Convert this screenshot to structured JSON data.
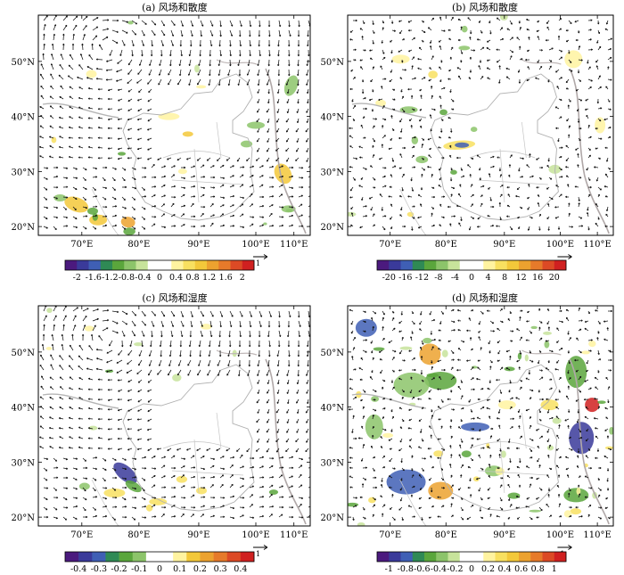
{
  "figure": {
    "panels": [
      {
        "id": "a",
        "title": "(a) 风场和散度",
        "lat_labels": [
          "50°N",
          "40°N",
          "30°N",
          "20°N"
        ],
        "lon_labels": [
          "70°E",
          "80°E",
          "90°E",
          "100°E",
          "110°E"
        ],
        "colorbar": {
          "tick_labels": [
            "-2",
            "-1.6",
            "-1.2",
            "-0.8",
            "-0.4",
            "0",
            "0.4",
            "0.8",
            "1.2",
            "1.6",
            "2"
          ],
          "colors": [
            "#4b1a7e",
            "#3a3a9a",
            "#3f5fb5",
            "#2f8a55",
            "#5aa63c",
            "#8cc46a",
            "#c7e39b",
            "#ffffff",
            "#ffffff",
            "#fff3a0",
            "#f8e060",
            "#f3c83a",
            "#eca22f",
            "#e67a2a",
            "#dc4a25",
            "#d02020"
          ]
        },
        "reference_vector": "1"
      },
      {
        "id": "b",
        "title": "(b) 风场和散度",
        "lat_labels": [
          "50°N",
          "40°N",
          "30°N",
          "20°N"
        ],
        "lon_labels": [
          "70°E",
          "80°E",
          "90°E",
          "100°E",
          "110°E"
        ],
        "colorbar": {
          "tick_labels": [
            "-20",
            "-16",
            "-12",
            "-8",
            "-4",
            "0",
            "4",
            "8",
            "12",
            "16",
            "20"
          ],
          "colors": [
            "#4b1a7e",
            "#3a3a9a",
            "#3f5fb5",
            "#2f8a55",
            "#5aa63c",
            "#8cc46a",
            "#c7e39b",
            "#ffffff",
            "#ffffff",
            "#fff3a0",
            "#f8e060",
            "#f3c83a",
            "#eca22f",
            "#e67a2a",
            "#dc4a25",
            "#d02020"
          ]
        },
        "reference_vector": "1"
      },
      {
        "id": "c",
        "title": "(c) 风场和湿度",
        "lat_labels": [
          "50°N",
          "40°N",
          "30°N",
          "20°N"
        ],
        "lon_labels": [
          "70°E",
          "80°E",
          "90°E",
          "100°E",
          "110°E"
        ],
        "colorbar": {
          "tick_labels": [
            "-0.4",
            "-0.3",
            "-0.2",
            "-0.1",
            "0",
            "0.1",
            "0.2",
            "0.3",
            "0.4"
          ],
          "colors": [
            "#4b1a7e",
            "#3a3a9a",
            "#3f5fb5",
            "#2f8a55",
            "#5aa63c",
            "#8cc46a",
            "#ffffff",
            "#ffffff",
            "#fff3a0",
            "#f3c83a",
            "#eca22f",
            "#e67a2a",
            "#dc4a25",
            "#d02020"
          ]
        },
        "reference_vector": "1"
      },
      {
        "id": "d",
        "title": "(d) 风场和湿度",
        "lat_labels": [
          "50°N",
          "40°N",
          "30°N",
          "20°N"
        ],
        "lon_labels": [
          "70°E",
          "80°E",
          "90°E",
          "100°E",
          "110°E"
        ],
        "colorbar": {
          "tick_labels": [
            "-1",
            "-0.8",
            "-0.6",
            "-0.4",
            "-0.2",
            "0",
            "0.2",
            "0.4",
            "0.6",
            "0.8",
            "1"
          ],
          "colors": [
            "#4b1a7e",
            "#3a3a9a",
            "#3f5fb5",
            "#2f8a55",
            "#5aa63c",
            "#8cc46a",
            "#c7e39b",
            "#ffffff",
            "#ffffff",
            "#fff3a0",
            "#f8e060",
            "#f3c83a",
            "#eca22f",
            "#e67a2a",
            "#dc4a25",
            "#d02020"
          ]
        },
        "reference_vector": "1"
      }
    ]
  }
}
